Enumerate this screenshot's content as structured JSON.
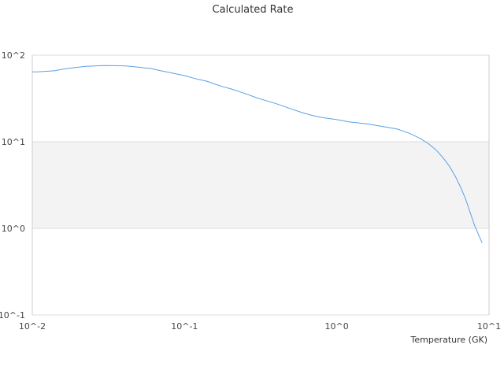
{
  "chart_data": {
    "type": "line",
    "title": "Calculated Rate",
    "xlabel": "Temperature (GK)",
    "ylabel": "",
    "xscale": "log",
    "yscale": "log",
    "xlim": [
      0.01,
      10
    ],
    "ylim": [
      0.1,
      100
    ],
    "grid": true,
    "legend": "none",
    "x_tick_labels": [
      "10^-2",
      "10^-1",
      "10^0",
      "10^1"
    ],
    "y_tick_labels": [
      "10^-1",
      "10^0",
      "10^1",
      "10^2"
    ],
    "colors": {
      "line": "#5aa0e6",
      "band": "#f3f3f3",
      "grid": "#dddddd",
      "axis": "#cccccc"
    },
    "series": [
      {
        "x": [
          0.01,
          0.011,
          0.012,
          0.013,
          0.014,
          0.015,
          0.016,
          0.017,
          0.018,
          0.02,
          0.022,
          0.025,
          0.028,
          0.03,
          0.035,
          0.04,
          0.045,
          0.05,
          0.06,
          0.07,
          0.08,
          0.1,
          0.12,
          0.14,
          0.16,
          0.18,
          0.2,
          0.25,
          0.3,
          0.35,
          0.4,
          0.5,
          0.6,
          0.7,
          0.8,
          1.0,
          1.2,
          1.4,
          1.6,
          1.8,
          2.0,
          2.5,
          3.0,
          3.5,
          4.0,
          4.5,
          5.0,
          5.5,
          6.0,
          6.5,
          7.0,
          8.0,
          9.0
        ],
        "y": [
          64,
          64,
          65,
          65.5,
          66,
          67.5,
          69,
          70,
          71,
          72.5,
          74,
          74.8,
          75.5,
          75.7,
          75.5,
          75.2,
          74,
          72.5,
          70,
          66,
          63,
          58,
          53,
          50,
          46,
          43,
          41,
          36,
          32,
          29.5,
          27.5,
          24,
          21.5,
          20,
          19,
          18,
          17,
          16.5,
          16,
          15.5,
          15,
          14,
          12.5,
          11,
          9.5,
          8,
          6.5,
          5.2,
          4,
          3,
          2.2,
          1.1,
          0.68
        ]
      }
    ]
  }
}
